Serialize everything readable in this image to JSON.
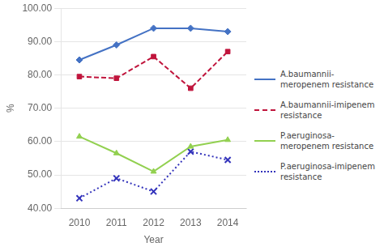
{
  "chart_data": {
    "type": "line",
    "x": [
      2010,
      2011,
      2012,
      2013,
      2014
    ],
    "series": [
      {
        "name": "A.baumannii-\nmeropenem resistance",
        "color": "#4472C4",
        "marker": "diamond",
        "line_style": "solid",
        "values": [
          84.5,
          89.0,
          94.0,
          94.0,
          93.0
        ]
      },
      {
        "name": "A.baumannii-imipenem\nresistance",
        "color": "#C0143C",
        "marker": "square",
        "line_style": "dashed",
        "values": [
          79.5,
          79.0,
          85.5,
          76.0,
          87.0
        ]
      },
      {
        "name": "P.aeruginosa-\nmeropenem resistance",
        "color": "#92D050",
        "marker": "triangle",
        "line_style": "solid",
        "values": [
          61.5,
          56.5,
          51.0,
          58.5,
          60.5
        ]
      },
      {
        "name": "P.aeruginosa-imipenem\nresistance",
        "color": "#3333BB",
        "marker": "x",
        "line_style": "dotted",
        "values": [
          43.0,
          49.0,
          45.0,
          57.0,
          54.5
        ]
      }
    ],
    "x_label": "Year",
    "y_label": "%",
    "xlim": [
      2009.5,
      2014.5
    ],
    "xticks": [
      2010,
      2011,
      2012,
      2013,
      2014
    ],
    "ylim": [
      40.0,
      100.0
    ],
    "yticks": [
      {
        "value": 40,
        "label": "40.00"
      },
      {
        "value": 50,
        "label": "50.00"
      },
      {
        "value": 60,
        "label": "60.00"
      },
      {
        "value": 70,
        "label": "70.00"
      },
      {
        "value": 80,
        "label": "80.00"
      },
      {
        "value": 90,
        "label": "90.00"
      },
      {
        "value": 100,
        "label": "100.00"
      }
    ],
    "grid": "y",
    "legend": "right"
  }
}
